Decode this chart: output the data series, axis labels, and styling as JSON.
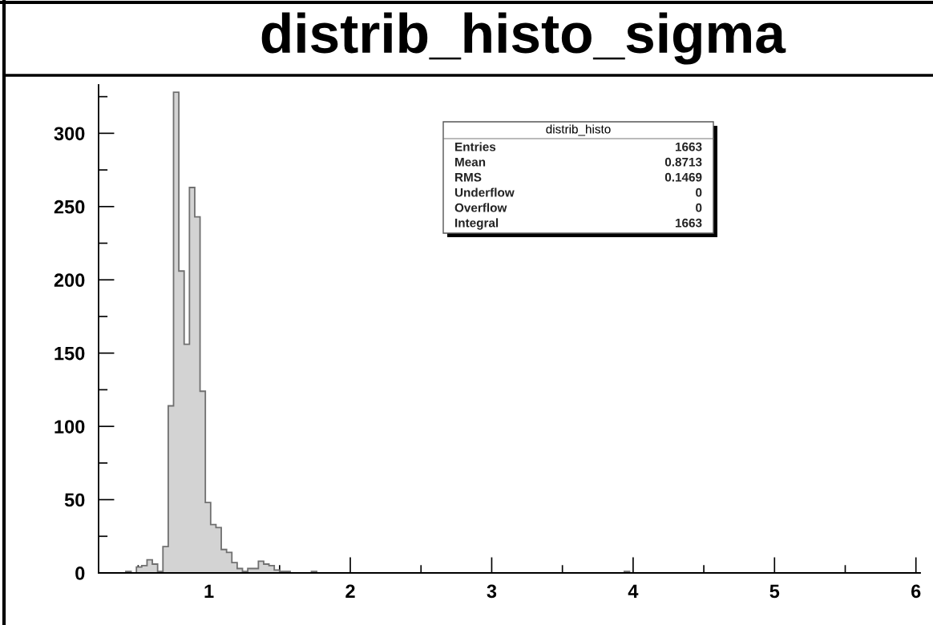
{
  "chart_data": {
    "type": "histogram",
    "title": "distrib_histo_sigma",
    "bins": [
      0.4125,
      0.45,
      0.4875,
      0.525,
      0.5625,
      0.6,
      0.6375,
      0.675,
      0.7125,
      0.75,
      0.7875,
      0.825,
      0.8625,
      0.9,
      0.9375,
      0.975,
      1.0125,
      1.05,
      1.0875,
      1.125,
      1.1625,
      1.2,
      1.2375,
      1.275,
      1.3125,
      1.35,
      1.3875,
      1.425,
      1.4625,
      1.5,
      1.5375,
      1.575,
      1.6125,
      1.65,
      1.6875,
      1.725,
      1.7625,
      1.8,
      1.8375,
      1.875,
      1.9125,
      1.95,
      1.9875,
      2.025,
      2.0625,
      2.1,
      2.1375,
      2.175,
      2.2125,
      2.25,
      2.2875,
      2.325,
      2.3625,
      2.4,
      2.4375,
      2.475,
      2.5125,
      2.55,
      2.5875,
      2.625,
      2.6625,
      2.7,
      2.7375,
      2.775,
      2.8125,
      2.85,
      2.8875,
      2.925,
      2.9625,
      3.0,
      3.0375,
      3.075,
      3.1125,
      3.15,
      3.1875,
      3.225,
      3.2625,
      3.3,
      3.3375,
      3.375,
      3.4125,
      3.45,
      3.4875,
      3.525,
      3.5625,
      3.6,
      3.6375,
      3.675,
      3.7125,
      3.75,
      3.7875,
      3.825,
      3.8625,
      3.9,
      3.9375,
      3.975
    ],
    "values": [
      1,
      0,
      4,
      5,
      9,
      6,
      1,
      18,
      114,
      328,
      206,
      156,
      263,
      243,
      124,
      48,
      33,
      31,
      16,
      14,
      7,
      3,
      1,
      3,
      3,
      8,
      6,
      5,
      2,
      1,
      1,
      0,
      0,
      0,
      0,
      1,
      0,
      0,
      0,
      0,
      0,
      0,
      0,
      0,
      0,
      0,
      0,
      0,
      0,
      0,
      0,
      0,
      0,
      0,
      0,
      0,
      0,
      0,
      0,
      0,
      0,
      0,
      0,
      0,
      0,
      0,
      0,
      0,
      0,
      0,
      0,
      0,
      0,
      0,
      0,
      0,
      0,
      0,
      0,
      0,
      0,
      0,
      0,
      0,
      0,
      0,
      0,
      0,
      0,
      0,
      0,
      0,
      0,
      0,
      1
    ],
    "color": "#d3d3d3",
    "xlim": [
      0.22,
      6.03
    ],
    "xticks": [
      {
        "value": 0.5,
        "label": null
      },
      1,
      {
        "value": 1.5,
        "label": null
      },
      2,
      {
        "value": 2.5,
        "label": null
      },
      3,
      {
        "value": 3.5,
        "label": null
      },
      4,
      {
        "value": 4.5,
        "label": null
      },
      5,
      {
        "value": 5.5,
        "label": null
      },
      6
    ],
    "ylim": [
      0,
      333
    ],
    "yticks": [
      0,
      {
        "value": 25,
        "label": null
      },
      50,
      {
        "value": 75,
        "label": null
      },
      100,
      {
        "value": 125,
        "label": null
      },
      150,
      {
        "value": 175,
        "label": null
      },
      200,
      {
        "value": 225,
        "label": null
      },
      250,
      {
        "value": 275,
        "label": null
      },
      300,
      {
        "value": 325,
        "label": null
      }
    ],
    "grid": false,
    "annotations": [
      "distrib_histo",
      "Entries 1663",
      "Mean 0.8713",
      "RMS 0.1469",
      "Underflow 0",
      "Overflow 0",
      "Integral 1663"
    ]
  }
}
